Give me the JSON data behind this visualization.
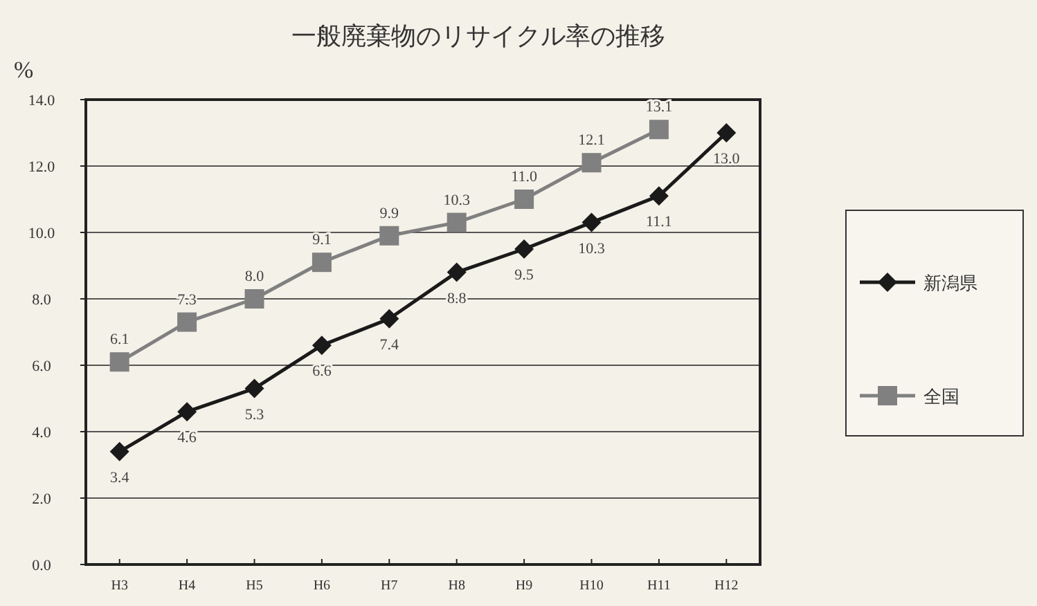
{
  "chart_data": {
    "type": "line",
    "title": "一般廃棄物のリサイクル率の推移",
    "ylabel": "%",
    "categories": [
      "H3",
      "H4",
      "H5",
      "H6",
      "H7",
      "H8",
      "H9",
      "H10",
      "H11",
      "H12"
    ],
    "series": [
      {
        "name": "新潟県",
        "color": "#1a1a1a",
        "marker": "diamond",
        "values": [
          3.4,
          4.6,
          5.3,
          6.6,
          7.4,
          8.8,
          9.5,
          10.3,
          11.1,
          13.0
        ],
        "value_labels": [
          "3.4",
          "4.6",
          "5.3",
          "6.6",
          "7.4",
          "8.8",
          "9.5",
          "10.3",
          "11.1",
          "13.0"
        ]
      },
      {
        "name": "全国",
        "color": "#808080",
        "marker": "square",
        "values": [
          6.1,
          7.3,
          8.0,
          9.1,
          9.9,
          10.3,
          11.0,
          12.1,
          13.1,
          null
        ],
        "value_labels": [
          "6.1",
          "7.3",
          "8.0",
          "9.1",
          "9.9",
          "10.3",
          "11.0",
          "12.1",
          "13.1",
          null
        ]
      }
    ],
    "ylim": [
      0,
      14
    ],
    "yticks": [
      {
        "value": 0,
        "label": "0.0"
      },
      {
        "value": 2,
        "label": "2.0"
      },
      {
        "value": 4,
        "label": "4.0"
      },
      {
        "value": 6,
        "label": "6.0"
      },
      {
        "value": 8,
        "label": "8.0"
      },
      {
        "value": 10,
        "label": "10.0"
      },
      {
        "value": 12,
        "label": "12.0"
      },
      {
        "value": 14,
        "label": "14.0"
      }
    ],
    "grid": "y",
    "legend": "right",
    "line_style": "solid"
  }
}
